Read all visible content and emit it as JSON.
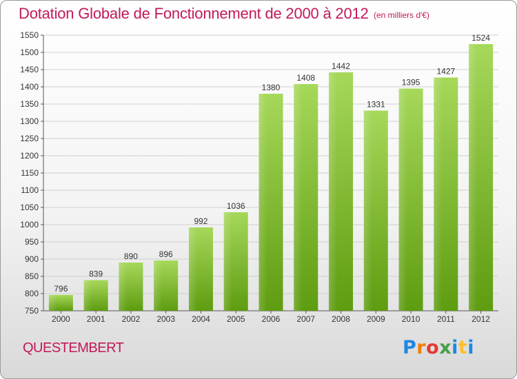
{
  "header": {
    "title": "Dotation Globale de Fonctionnement de 2000 à 2012",
    "subtitle": "(en milliers d'€)"
  },
  "commune": "QUESTEMBERT",
  "logo": {
    "text": "Proxiti",
    "letters": [
      "P",
      "r",
      "o",
      "x",
      "i",
      "t",
      "i"
    ]
  },
  "colors": {
    "title": "#c2185b",
    "bar_light": "#a6d85a",
    "bar_dark": "#5e9c10",
    "grid": "#cfcfcf",
    "axis": "#555555"
  },
  "chart_data": {
    "type": "bar",
    "categories": [
      "2000",
      "2001",
      "2002",
      "2003",
      "2004",
      "2005",
      "2006",
      "2007",
      "2008",
      "2009",
      "2010",
      "2011",
      "2012"
    ],
    "values": [
      796,
      839,
      890,
      896,
      992,
      1036,
      1380,
      1408,
      1442,
      1331,
      1395,
      1427,
      1524
    ],
    "ylim": [
      750,
      1550
    ],
    "yticks": [
      750,
      800,
      850,
      900,
      950,
      1000,
      1050,
      1100,
      1150,
      1200,
      1250,
      1300,
      1350,
      1400,
      1450,
      1500,
      1550
    ],
    "title": "Dotation Globale de Fonctionnement de 2000 à 2012",
    "subtitle": "(en milliers d'€)",
    "xlabel": "",
    "ylabel": "",
    "grid": true,
    "data_labels": true
  }
}
